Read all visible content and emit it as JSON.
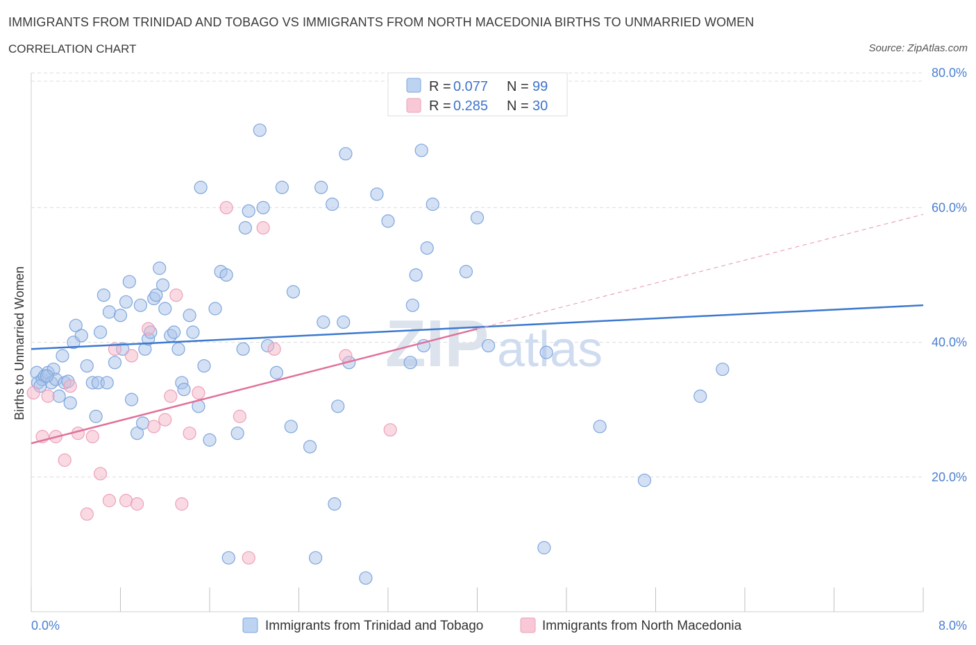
{
  "header": {
    "title": "IMMIGRANTS FROM TRINIDAD AND TOBAGO VS IMMIGRANTS FROM NORTH MACEDONIA BIRTHS TO UNMARRIED WOMEN",
    "subtitle": "CORRELATION CHART",
    "source": "Source: ZipAtlas.com"
  },
  "watermark": {
    "zip": "ZIP",
    "atlas": "atlas"
  },
  "legend": {
    "r_label": "R =",
    "n_label": "N =",
    "rows": [
      {
        "r": "0.077",
        "n": "99"
      },
      {
        "r": "0.285",
        "n": "30"
      }
    ]
  },
  "chart_data": {
    "type": "scatter",
    "xlabel": "",
    "ylabel": "Births to Unmarried Women",
    "xlim": [
      0,
      8
    ],
    "ylim": [
      0,
      80
    ],
    "x_tick_labels": [
      "0.0%",
      "8.0%"
    ],
    "y_ticks": [
      20,
      40,
      60,
      80
    ],
    "y_tick_labels": [
      "20.0%",
      "40.0%",
      "60.0%",
      "80.0%"
    ],
    "grid": true,
    "legend_position": "top-center",
    "colors": {
      "series1": "#a9c4ea",
      "series1_line": "#3b78cf",
      "series2": "#f4b6c8",
      "series2_line": "#e0709a"
    },
    "series": [
      {
        "name": "Immigrants from Trinidad and Tobago",
        "trend": {
          "x": [
            0,
            8
          ],
          "y": [
            39.0,
            45.5
          ]
        },
        "points": [
          [
            0.05,
            35.5
          ],
          [
            0.06,
            34.0
          ],
          [
            0.1,
            34.5
          ],
          [
            0.12,
            35.0
          ],
          [
            0.15,
            35.5
          ],
          [
            0.18,
            34.0
          ],
          [
            0.2,
            36.0
          ],
          [
            0.22,
            34.5
          ],
          [
            0.25,
            32.0
          ],
          [
            0.28,
            38.0
          ],
          [
            0.3,
            34.0
          ],
          [
            0.35,
            31.0
          ],
          [
            0.38,
            40.0
          ],
          [
            0.4,
            42.5
          ],
          [
            0.45,
            41.0
          ],
          [
            0.5,
            36.5
          ],
          [
            0.55,
            34.0
          ],
          [
            0.6,
            34.0
          ],
          [
            0.62,
            41.5
          ],
          [
            0.65,
            47.0
          ],
          [
            0.68,
            34.0
          ],
          [
            0.7,
            44.5
          ],
          [
            0.75,
            37.0
          ],
          [
            0.8,
            44.0
          ],
          [
            0.82,
            39.0
          ],
          [
            0.85,
            46.0
          ],
          [
            0.88,
            49.0
          ],
          [
            0.9,
            31.5
          ],
          [
            0.95,
            26.5
          ],
          [
            0.98,
            45.5
          ],
          [
            1.02,
            39.0
          ],
          [
            1.05,
            40.5
          ],
          [
            1.07,
            41.5
          ],
          [
            1.1,
            46.5
          ],
          [
            1.12,
            47.0
          ],
          [
            1.15,
            51.0
          ],
          [
            1.18,
            48.5
          ],
          [
            1.2,
            45.0
          ],
          [
            1.25,
            41.0
          ],
          [
            1.28,
            41.5
          ],
          [
            1.32,
            39.0
          ],
          [
            1.35,
            34.0
          ],
          [
            1.37,
            33.0
          ],
          [
            1.42,
            44.0
          ],
          [
            1.45,
            41.5
          ],
          [
            1.5,
            30.5
          ],
          [
            1.52,
            63.0
          ],
          [
            1.55,
            36.5
          ],
          [
            1.6,
            25.5
          ],
          [
            1.65,
            45.0
          ],
          [
            1.7,
            50.5
          ],
          [
            1.75,
            50.0
          ],
          [
            1.77,
            8.0
          ],
          [
            1.85,
            26.5
          ],
          [
            1.9,
            39.0
          ],
          [
            1.92,
            57.0
          ],
          [
            1.95,
            59.5
          ],
          [
            2.05,
            71.5
          ],
          [
            2.08,
            60.0
          ],
          [
            2.12,
            39.5
          ],
          [
            2.2,
            35.5
          ],
          [
            2.25,
            63.0
          ],
          [
            2.33,
            27.5
          ],
          [
            2.35,
            47.5
          ],
          [
            2.5,
            24.5
          ],
          [
            2.55,
            8.0
          ],
          [
            2.6,
            63.0
          ],
          [
            2.62,
            43.0
          ],
          [
            2.7,
            60.5
          ],
          [
            2.72,
            16.0
          ],
          [
            2.75,
            30.5
          ],
          [
            2.8,
            43.0
          ],
          [
            2.82,
            68.0
          ],
          [
            2.85,
            37.0
          ],
          [
            3.0,
            5.0
          ],
          [
            3.1,
            62.0
          ],
          [
            3.2,
            58.0
          ],
          [
            3.3,
            76.5
          ],
          [
            3.4,
            37.0
          ],
          [
            3.42,
            45.5
          ],
          [
            3.45,
            50.0
          ],
          [
            3.5,
            68.5
          ],
          [
            3.52,
            39.5
          ],
          [
            3.55,
            54.0
          ],
          [
            3.6,
            60.5
          ],
          [
            3.9,
            50.5
          ],
          [
            4.0,
            58.5
          ],
          [
            4.1,
            39.5
          ],
          [
            4.6,
            9.5
          ],
          [
            4.62,
            38.5
          ],
          [
            5.1,
            27.5
          ],
          [
            5.5,
            19.5
          ],
          [
            6.0,
            32.0
          ],
          [
            6.2,
            36.0
          ],
          [
            0.08,
            33.5
          ],
          [
            0.14,
            35.0
          ],
          [
            0.33,
            34.2
          ],
          [
            0.58,
            29.0
          ],
          [
            1.0,
            28.0
          ]
        ]
      },
      {
        "name": "Immigrants from North Macedonia",
        "trend": {
          "x": [
            0,
            4.0
          ],
          "y": [
            25.0,
            42.0
          ]
        },
        "points": [
          [
            0.02,
            32.5
          ],
          [
            0.1,
            26.0
          ],
          [
            0.15,
            32.0
          ],
          [
            0.22,
            26.0
          ],
          [
            0.3,
            22.5
          ],
          [
            0.35,
            33.5
          ],
          [
            0.42,
            26.5
          ],
          [
            0.5,
            14.5
          ],
          [
            0.55,
            26.0
          ],
          [
            0.62,
            20.5
          ],
          [
            0.7,
            16.5
          ],
          [
            0.75,
            39.0
          ],
          [
            0.85,
            16.5
          ],
          [
            0.9,
            38.0
          ],
          [
            0.95,
            16.0
          ],
          [
            1.05,
            42.0
          ],
          [
            1.1,
            27.5
          ],
          [
            1.2,
            28.5
          ],
          [
            1.25,
            32.0
          ],
          [
            1.3,
            47.0
          ],
          [
            1.35,
            16.0
          ],
          [
            1.42,
            26.5
          ],
          [
            1.5,
            32.5
          ],
          [
            1.75,
            60.0
          ],
          [
            1.87,
            29.0
          ],
          [
            1.95,
            8.0
          ],
          [
            2.08,
            57.0
          ],
          [
            2.18,
            39.0
          ],
          [
            2.82,
            38.0
          ],
          [
            3.22,
            27.0
          ]
        ]
      }
    ]
  }
}
